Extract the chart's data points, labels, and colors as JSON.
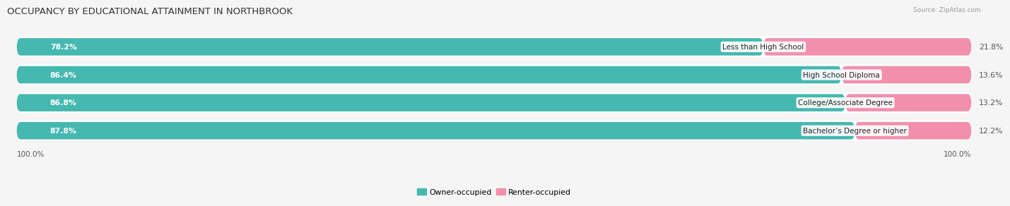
{
  "title": "OCCUPANCY BY EDUCATIONAL ATTAINMENT IN NORTHBROOK",
  "source": "Source: ZipAtlas.com",
  "categories": [
    "Less than High School",
    "High School Diploma",
    "College/Associate Degree",
    "Bachelor’s Degree or higher"
  ],
  "owner_pct": [
    78.2,
    86.4,
    86.8,
    87.8
  ],
  "renter_pct": [
    21.8,
    13.6,
    13.2,
    12.2
  ],
  "owner_color": "#45b8b0",
  "renter_color": "#f28fad",
  "bg_color": "#f5f5f5",
  "bar_bg_color": "#ffffff",
  "row_bg_color": "#e8e8e8",
  "title_fontsize": 9.5,
  "label_fontsize": 7.8,
  "cat_fontsize": 7.5,
  "tick_fontsize": 7.5,
  "source_fontsize": 6.5,
  "left_label": "100.0%",
  "right_label": "100.0%"
}
